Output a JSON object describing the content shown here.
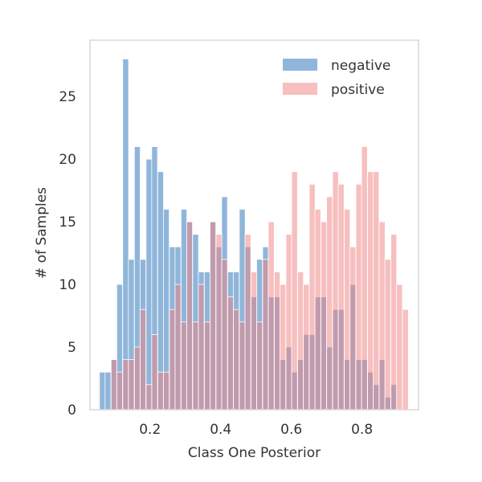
{
  "chart_data": {
    "type": "histogram",
    "xlabel": "Class One Posterior",
    "ylabel": "# of Samples",
    "xlim": [
      0.03,
      0.96
    ],
    "ylim": [
      0,
      29.5
    ],
    "xticks": [
      0.2,
      0.4,
      0.6,
      0.8
    ],
    "xtick_labels": [
      "0.2",
      "0.4",
      "0.6",
      "0.8"
    ],
    "yticks": [
      0,
      5,
      10,
      15,
      20,
      25
    ],
    "ytick_labels": [
      "0",
      "5",
      "10",
      "15",
      "20",
      "25"
    ],
    "grid": false,
    "legend_position": "top-right",
    "bar_alpha": 0.5,
    "series": [
      {
        "name": "negative",
        "color": "#1f6db5",
        "bins": [
          {
            "x": 0.065,
            "y": 3
          },
          {
            "x": 0.081,
            "y": 3
          },
          {
            "x": 0.098,
            "y": 4
          },
          {
            "x": 0.114,
            "y": 10
          },
          {
            "x": 0.131,
            "y": 28
          },
          {
            "x": 0.147,
            "y": 12
          },
          {
            "x": 0.164,
            "y": 21
          },
          {
            "x": 0.18,
            "y": 12
          },
          {
            "x": 0.197,
            "y": 20
          },
          {
            "x": 0.213,
            "y": 21
          },
          {
            "x": 0.23,
            "y": 19
          },
          {
            "x": 0.246,
            "y": 16
          },
          {
            "x": 0.263,
            "y": 13
          },
          {
            "x": 0.279,
            "y": 13
          },
          {
            "x": 0.296,
            "y": 16
          },
          {
            "x": 0.312,
            "y": 15
          },
          {
            "x": 0.329,
            "y": 14
          },
          {
            "x": 0.345,
            "y": 11
          },
          {
            "x": 0.362,
            "y": 11
          },
          {
            "x": 0.378,
            "y": 15
          },
          {
            "x": 0.395,
            "y": 13
          },
          {
            "x": 0.411,
            "y": 17
          },
          {
            "x": 0.428,
            "y": 11
          },
          {
            "x": 0.444,
            "y": 11
          },
          {
            "x": 0.461,
            "y": 16
          },
          {
            "x": 0.477,
            "y": 13
          },
          {
            "x": 0.494,
            "y": 9
          },
          {
            "x": 0.51,
            "y": 12
          },
          {
            "x": 0.527,
            "y": 13
          },
          {
            "x": 0.543,
            "y": 9
          },
          {
            "x": 0.56,
            "y": 9
          },
          {
            "x": 0.576,
            "y": 4
          },
          {
            "x": 0.593,
            "y": 5
          },
          {
            "x": 0.609,
            "y": 3
          },
          {
            "x": 0.626,
            "y": 4
          },
          {
            "x": 0.642,
            "y": 6
          },
          {
            "x": 0.659,
            "y": 6
          },
          {
            "x": 0.675,
            "y": 9
          },
          {
            "x": 0.692,
            "y": 9
          },
          {
            "x": 0.708,
            "y": 5
          },
          {
            "x": 0.725,
            "y": 8
          },
          {
            "x": 0.741,
            "y": 8
          },
          {
            "x": 0.758,
            "y": 4
          },
          {
            "x": 0.774,
            "y": 10
          },
          {
            "x": 0.791,
            "y": 4
          },
          {
            "x": 0.807,
            "y": 4
          },
          {
            "x": 0.824,
            "y": 3
          },
          {
            "x": 0.84,
            "y": 2
          },
          {
            "x": 0.857,
            "y": 4
          },
          {
            "x": 0.873,
            "y": 1
          },
          {
            "x": 0.89,
            "y": 2
          }
        ]
      },
      {
        "name": "positive",
        "color": "#f08080",
        "bins": [
          {
            "x": 0.098,
            "y": 4
          },
          {
            "x": 0.114,
            "y": 3
          },
          {
            "x": 0.131,
            "y": 4
          },
          {
            "x": 0.147,
            "y": 4
          },
          {
            "x": 0.164,
            "y": 5
          },
          {
            "x": 0.18,
            "y": 8
          },
          {
            "x": 0.197,
            "y": 2
          },
          {
            "x": 0.213,
            "y": 6
          },
          {
            "x": 0.23,
            "y": 3
          },
          {
            "x": 0.246,
            "y": 3
          },
          {
            "x": 0.263,
            "y": 8
          },
          {
            "x": 0.279,
            "y": 10
          },
          {
            "x": 0.296,
            "y": 7
          },
          {
            "x": 0.312,
            "y": 15
          },
          {
            "x": 0.329,
            "y": 7
          },
          {
            "x": 0.345,
            "y": 10
          },
          {
            "x": 0.362,
            "y": 7
          },
          {
            "x": 0.378,
            "y": 15
          },
          {
            "x": 0.395,
            "y": 14
          },
          {
            "x": 0.411,
            "y": 12
          },
          {
            "x": 0.428,
            "y": 9
          },
          {
            "x": 0.444,
            "y": 8
          },
          {
            "x": 0.461,
            "y": 7
          },
          {
            "x": 0.477,
            "y": 14
          },
          {
            "x": 0.494,
            "y": 11
          },
          {
            "x": 0.51,
            "y": 7
          },
          {
            "x": 0.527,
            "y": 12
          },
          {
            "x": 0.543,
            "y": 15
          },
          {
            "x": 0.56,
            "y": 11
          },
          {
            "x": 0.576,
            "y": 10
          },
          {
            "x": 0.593,
            "y": 14
          },
          {
            "x": 0.609,
            "y": 19
          },
          {
            "x": 0.626,
            "y": 11
          },
          {
            "x": 0.642,
            "y": 10
          },
          {
            "x": 0.659,
            "y": 18
          },
          {
            "x": 0.675,
            "y": 16
          },
          {
            "x": 0.692,
            "y": 15
          },
          {
            "x": 0.708,
            "y": 17
          },
          {
            "x": 0.725,
            "y": 19
          },
          {
            "x": 0.741,
            "y": 18
          },
          {
            "x": 0.758,
            "y": 16
          },
          {
            "x": 0.774,
            "y": 13
          },
          {
            "x": 0.791,
            "y": 18
          },
          {
            "x": 0.807,
            "y": 21
          },
          {
            "x": 0.824,
            "y": 19
          },
          {
            "x": 0.84,
            "y": 19
          },
          {
            "x": 0.857,
            "y": 15
          },
          {
            "x": 0.873,
            "y": 12
          },
          {
            "x": 0.89,
            "y": 14
          },
          {
            "x": 0.906,
            "y": 10
          },
          {
            "x": 0.923,
            "y": 8
          }
        ]
      }
    ]
  }
}
